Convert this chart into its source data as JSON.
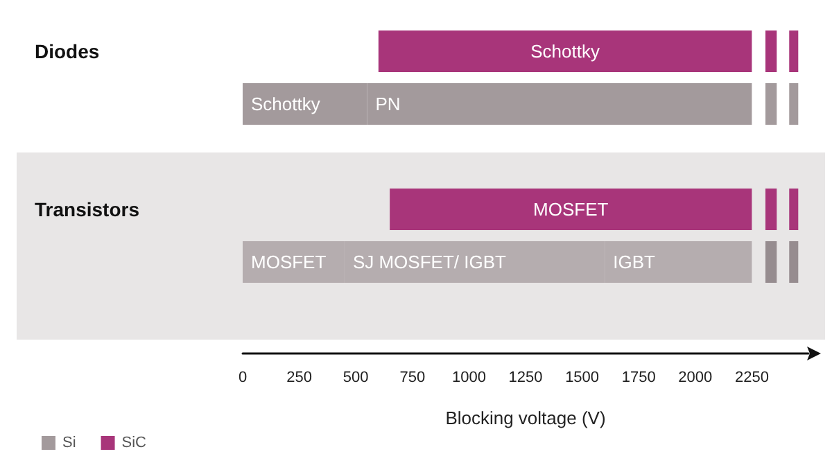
{
  "chart_data": {
    "type": "bar",
    "orientation": "horizontal",
    "categories": [
      "Diodes",
      null,
      null,
      "Transistors",
      null
    ],
    "xlim": [
      0,
      2500
    ],
    "xticks": [
      0,
      250,
      500,
      750,
      1000,
      1250,
      1500,
      1750,
      2000,
      2250
    ],
    "xlabel": "Blocking voltage (V)",
    "legend": "bottom left",
    "series": [
      {
        "name": "Si",
        "colors": [
          null,
          "#a39a9c",
          null,
          null,
          "#b5adaf"
        ],
        "values": [
          null,
          550,
          null,
          null,
          450
        ],
        "base": [
          null,
          0,
          null,
          null,
          0
        ],
        "value_labels": [
          null,
          "Schottky",
          null,
          null,
          "MOSFET"
        ]
      },
      {
        "colors": [
          null,
          "#a39a9c",
          null,
          null,
          "#b5adaf"
        ],
        "values": [
          null,
          1700,
          null,
          null,
          1150
        ],
        "base": [
          null,
          550,
          null,
          null,
          450
        ],
        "value_labels": [
          null,
          "PN",
          null,
          null,
          "SJ MOSFET/ IGBT"
        ]
      },
      {
        "color": "#b5adaf",
        "values": [
          null,
          null,
          null,
          null,
          650
        ],
        "base": [
          null,
          null,
          null,
          null,
          1600
        ],
        "value_labels": [
          null,
          null,
          null,
          null,
          "IGBT"
        ]
      },
      {
        "name": "SiC",
        "color": "#a8357a",
        "values": [
          1650,
          null,
          null,
          1600,
          null
        ],
        "base": [
          600,
          null,
          null,
          650,
          null
        ],
        "value_labels": [
          "Schottky",
          null,
          null,
          "MOSFET",
          null
        ]
      },
      {
        "colors": [
          "#a8357a",
          "#a39a9c",
          null,
          "#a8357a",
          "#968c8f"
        ],
        "values": [
          50,
          50,
          null,
          50,
          50
        ],
        "base": [
          2310,
          2310,
          null,
          2310,
          2310
        ]
      },
      {
        "colors": [
          "#a8357a",
          "#a39a9c",
          null,
          "#a8357a",
          "#968c8f"
        ],
        "values": [
          40,
          40,
          null,
          40,
          40
        ],
        "base": [
          2415,
          2415,
          null,
          2415,
          2415
        ]
      }
    ]
  }
}
